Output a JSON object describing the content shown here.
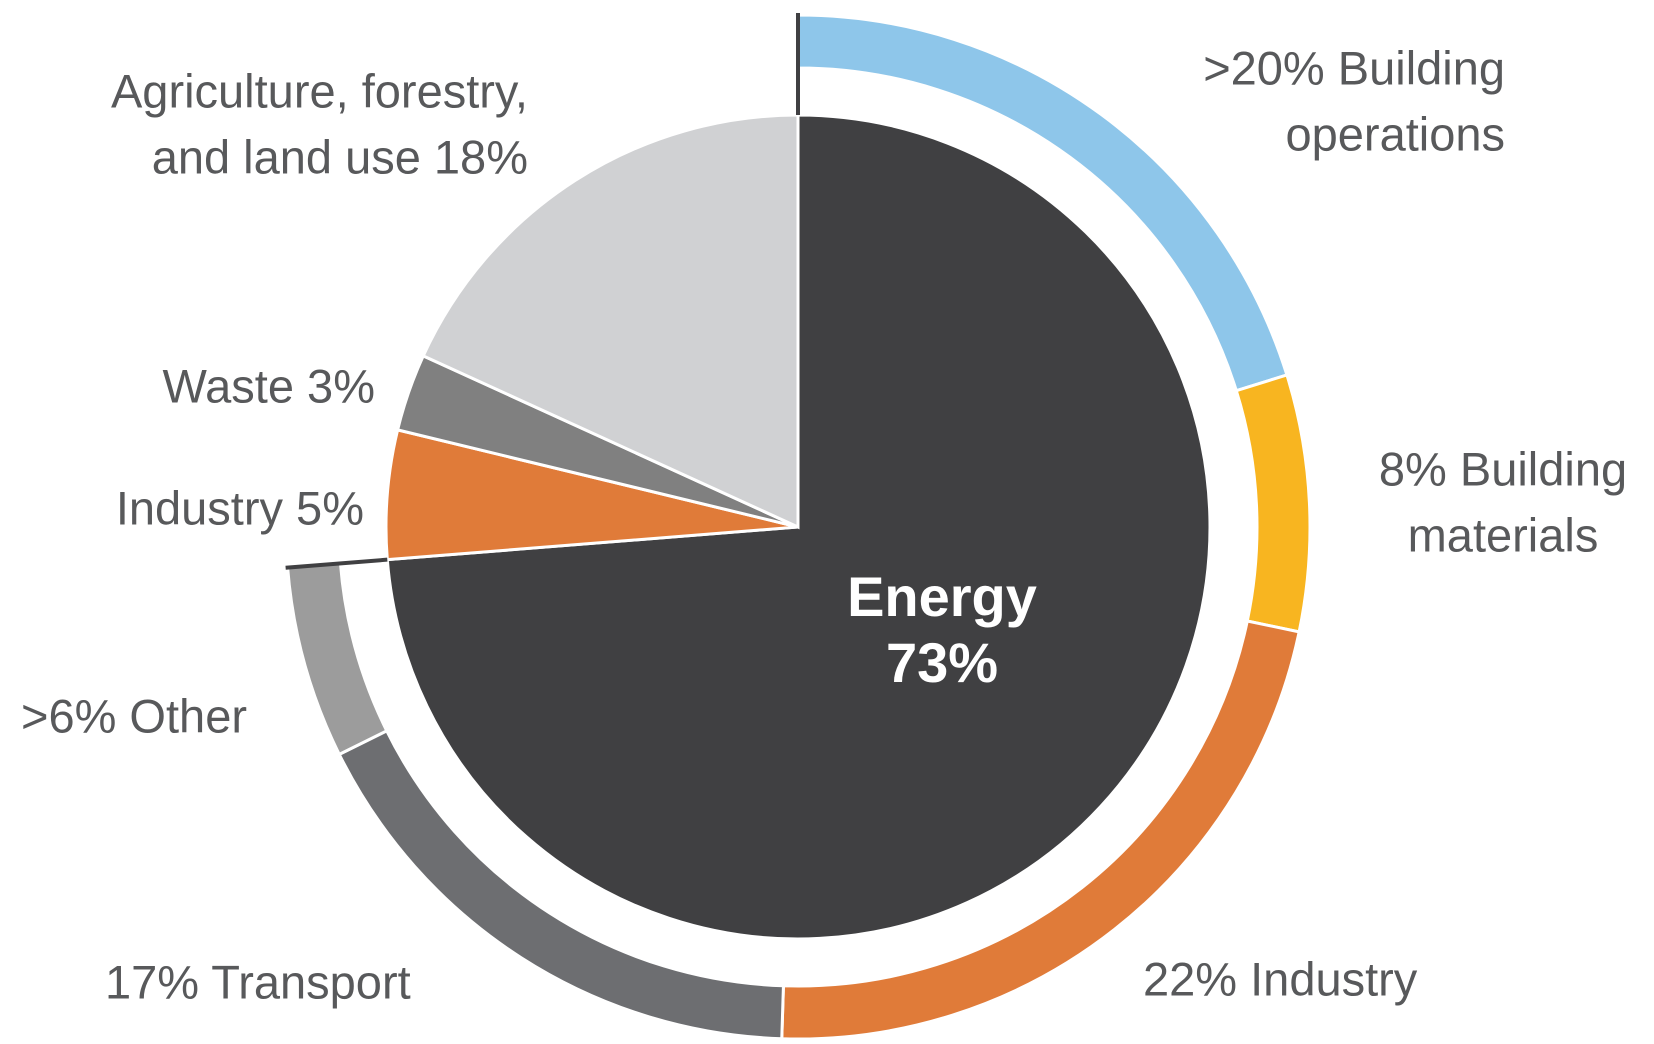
{
  "chart_data": [
    {
      "type": "pie",
      "values": [
        73,
        5,
        3,
        18
      ],
      "value_labels": [
        [
          "Energy",
          "73%"
        ],
        [
          "Industry  5%"
        ],
        [
          "Waste  3%"
        ],
        [
          "Agriculture, forestry,",
          "and land use 18%"
        ]
      ],
      "colors": [
        "#404042",
        "#e07b39",
        "#808080",
        "#d0d1d3"
      ]
    },
    {
      "type": "ring",
      "values": [
        20,
        8,
        22,
        17,
        6
      ],
      "value_labels": [
        [
          ">20% Building",
          "operations"
        ],
        [
          "8% Building",
          "materials"
        ],
        [
          "22% Industry"
        ],
        [
          "17% Transport"
        ],
        [
          ">6% Other"
        ]
      ],
      "colors": [
        "#8ec6ea",
        "#f8b520",
        "#e07b39",
        "#6d6e71",
        "#9c9c9c"
      ]
    }
  ]
}
